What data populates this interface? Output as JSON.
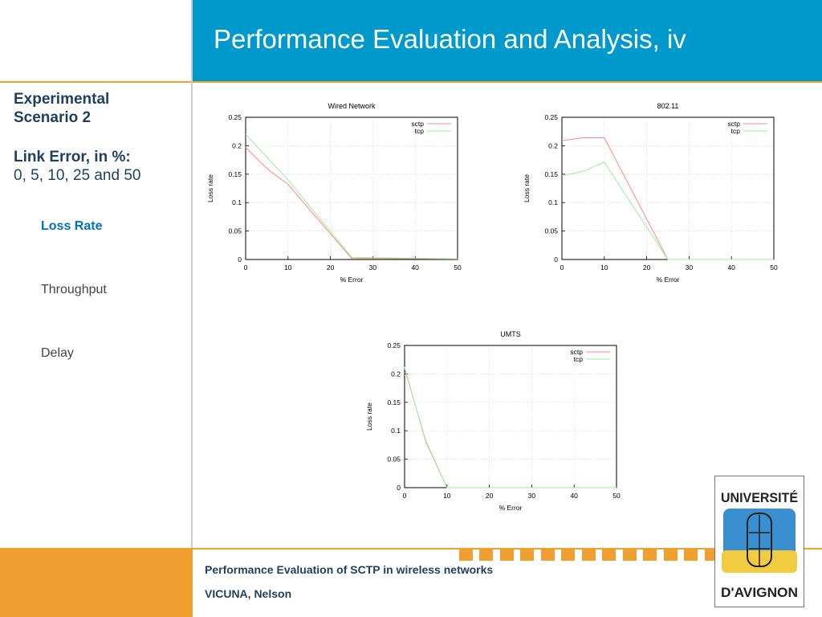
{
  "slide": {
    "title": "Performance Evaluation and Analysis, iv",
    "sidebar": {
      "heading_line1": "Experimental",
      "heading_line2": "Scenario 2",
      "link_error_label": "Link Error, in %:",
      "link_error_values": "0, 5, 10, 25 and 50",
      "nav": [
        {
          "label": "Loss Rate",
          "active": true
        },
        {
          "label": "Throughput",
          "active": false
        },
        {
          "label": "Delay",
          "active": false
        }
      ]
    },
    "footer": {
      "line1": "Performance Evaluation of SCTP in wireless networks",
      "line2": "VICUNA, Nelson"
    },
    "logo": {
      "line1": "UNIVERSITÉ",
      "line2": "D'AVIGNON"
    },
    "colors": {
      "header_blue": "#0099cc",
      "accent_orange": "#f0a030",
      "text_navy": "#1f3f5f",
      "nav_active": "#0070c0",
      "sctp_line": "#ff8888",
      "tcp_line": "#99ee99"
    }
  },
  "chart_data": [
    {
      "type": "line",
      "title": "Wired Network",
      "xlabel": "% Error",
      "ylabel": "Loss rate",
      "xlim": [
        0,
        50
      ],
      "ylim": [
        0,
        0.25
      ],
      "xticks": [
        "0",
        "10",
        "20",
        "30",
        "40",
        "50"
      ],
      "yticks": [
        "0",
        "0.05",
        "0.1",
        "0.15",
        "0.2",
        "0.25"
      ],
      "grid": true,
      "legend": "top-right",
      "series": [
        {
          "name": "sctp",
          "x": [
            0,
            5,
            10,
            25,
            50
          ],
          "y": [
            0.197,
            0.16,
            0.132,
            0.002,
            0.001
          ]
        },
        {
          "name": "tcp",
          "x": [
            0,
            5,
            10,
            25,
            50
          ],
          "y": [
            0.22,
            0.18,
            0.14,
            0.004,
            0.001
          ]
        }
      ]
    },
    {
      "type": "line",
      "title": "802.11",
      "xlabel": "% Error",
      "ylabel": "Loss rate",
      "xlim": [
        0,
        50
      ],
      "ylim": [
        0,
        0.25
      ],
      "xticks": [
        "0",
        "10",
        "20",
        "30",
        "40",
        "50"
      ],
      "yticks": [
        "0",
        "0.05",
        "0.1",
        "0.15",
        "0.2",
        "0.25"
      ],
      "grid": true,
      "legend": "top-right",
      "series": [
        {
          "name": "sctp",
          "x": [
            0,
            5,
            10,
            25,
            50
          ],
          "y": [
            0.209,
            0.214,
            0.214,
            0.0,
            0.0
          ]
        },
        {
          "name": "tcp",
          "x": [
            0,
            5,
            10,
            25,
            50
          ],
          "y": [
            0.147,
            0.155,
            0.171,
            0.0,
            0.0
          ]
        }
      ]
    },
    {
      "type": "line",
      "title": "UMTS",
      "xlabel": "% Error",
      "ylabel": "Loss rate",
      "xlim": [
        0,
        50
      ],
      "ylim": [
        0,
        0.25
      ],
      "xticks": [
        "0",
        "10",
        "20",
        "30",
        "40",
        "50"
      ],
      "yticks": [
        "0",
        "0.05",
        "0.1",
        "0.15",
        "0.2",
        "0.25"
      ],
      "grid": true,
      "legend": "top-right",
      "series": [
        {
          "name": "sctp",
          "x": [
            0,
            5,
            10,
            25,
            50
          ],
          "y": [
            0.21,
            0.082,
            0.0,
            0.0,
            0.0
          ]
        },
        {
          "name": "tcp",
          "x": [
            0,
            5,
            10,
            25,
            50
          ],
          "y": [
            0.212,
            0.08,
            0.0,
            0.0,
            0.0
          ]
        }
      ]
    }
  ]
}
